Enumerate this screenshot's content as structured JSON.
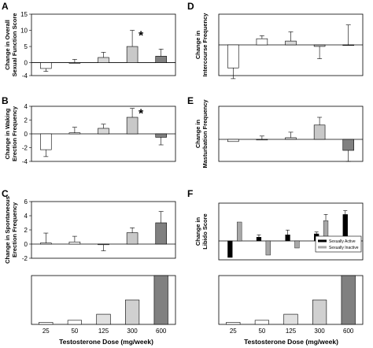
{
  "chart_data": [
    {
      "id": "A",
      "panel_label": "A",
      "type": "bar",
      "ylabel": "Change in Overall Sexual Function Score",
      "ylim": [
        -4,
        15
      ],
      "yticks": [
        -4,
        0,
        5,
        10,
        15
      ],
      "yticklabels": [
        "-4",
        "0",
        "5",
        "10",
        "15"
      ],
      "categories": [
        "25",
        "50",
        "125",
        "300",
        "600"
      ],
      "values": [
        -1.8,
        0.0,
        1.6,
        5.0,
        2.0
      ],
      "errors": [
        0.9,
        1.0,
        1.6,
        5.0,
        2.2
      ],
      "fills": [
        "#ffffff",
        "#ffffff",
        "#d8d8d8",
        "#c8c8c8",
        "#808080"
      ],
      "annotations": [
        {
          "category": "300",
          "text": "*"
        }
      ]
    },
    {
      "id": "B",
      "panel_label": "B",
      "type": "bar",
      "ylabel": "Change in Waking Erection Frequency",
      "ylim": [
        -4,
        4
      ],
      "yticks": [
        -4,
        -2,
        0,
        2,
        4
      ],
      "yticklabels": [
        "-4",
        "-2",
        "0",
        "2",
        "4"
      ],
      "categories": [
        "25",
        "50",
        "125",
        "300",
        "600"
      ],
      "values": [
        -2.3,
        0.15,
        0.8,
        2.4,
        -0.5
      ],
      "errors": [
        1.0,
        0.8,
        0.6,
        1.3,
        1.1
      ],
      "fills": [
        "#ffffff",
        "#ffffff",
        "#d8d8d8",
        "#c8c8c8",
        "#808080"
      ],
      "annotations": [
        {
          "category": "300",
          "text": "*"
        }
      ]
    },
    {
      "id": "C",
      "panel_label": "C",
      "type": "bar",
      "ylabel": "Change in Spontaneous Erection Frequency",
      "ylim": [
        -2,
        6
      ],
      "yticks": [
        -2,
        0,
        2,
        4,
        6
      ],
      "yticklabels": [
        "-2",
        "0",
        "2",
        "4",
        "6"
      ],
      "categories": [
        "25",
        "50",
        "125",
        "300",
        "600"
      ],
      "values": [
        0.15,
        0.3,
        -0.05,
        1.6,
        3.0
      ],
      "errors": [
        1.4,
        0.8,
        0.9,
        0.7,
        1.6
      ],
      "fills": [
        "#ffffff",
        "#ffffff",
        "#d8d8d8",
        "#c8c8c8",
        "#808080"
      ],
      "annotations": []
    },
    {
      "id": "D",
      "panel_label": "D",
      "type": "bar",
      "ylabel": "Change in Intercourse Frequency",
      "ylim": [
        -2,
        2
      ],
      "yticks": [],
      "yticklabels": [],
      "categories": [
        "25",
        "50",
        "125",
        "300",
        "600"
      ],
      "values": [
        -1.5,
        0.4,
        0.25,
        -0.1,
        0.0
      ],
      "errors": [
        0.7,
        0.2,
        0.6,
        0.8,
        1.3
      ],
      "fills": [
        "#ffffff",
        "#ffffff",
        "#d8d8d8",
        "#c8c8c8",
        "#808080"
      ],
      "annotations": []
    },
    {
      "id": "E",
      "panel_label": "E",
      "type": "bar",
      "ylabel": "Change in Masturbation Frequency",
      "ylim": [
        -2,
        3
      ],
      "yticks": [],
      "yticklabels": [],
      "categories": [
        "25",
        "50",
        "125",
        "300",
        "600"
      ],
      "values": [
        -0.2,
        0.0,
        0.15,
        1.3,
        -1.0
      ],
      "errors": [
        0.0,
        0.3,
        0.5,
        0.7,
        1.0
      ],
      "fills": [
        "#ffffff",
        "#ffffff",
        "#d8d8d8",
        "#c8c8c8",
        "#808080"
      ],
      "annotations": []
    },
    {
      "id": "F",
      "panel_label": "F",
      "type": "bar",
      "ylabel": "Change in Libido Score",
      "ylim": [
        -4,
        8
      ],
      "yticks": [],
      "yticklabels": [],
      "categories": [
        "25",
        "50",
        "125",
        "300",
        "600"
      ],
      "series": [
        {
          "name": "Sexually Active",
          "color": "#000000",
          "values": [
            -3.5,
            0.8,
            1.3,
            1.5,
            5.6
          ],
          "errors": [
            0.0,
            0.5,
            1.0,
            0.4,
            0.8
          ]
        },
        {
          "name": "Sexually Inactive",
          "color": "#a8a8a8",
          "values": [
            4.0,
            -3.0,
            -1.5,
            4.3,
            0.0
          ],
          "errors": [
            0.0,
            0.0,
            0.0,
            1.3,
            0.0
          ]
        }
      ],
      "legend_position": "bottom-right",
      "annotations": []
    },
    {
      "id": "dose-left",
      "type": "bar",
      "xlabel": "Testosterone Dose (mg/week)",
      "categories": [
        "25",
        "50",
        "125",
        "300",
        "600"
      ],
      "values": [
        25,
        50,
        125,
        300,
        600
      ],
      "ylim": [
        0,
        600
      ],
      "fills": [
        "#ffffff",
        "#ffffff",
        "#e0e0e0",
        "#d0d0d0",
        "#808080"
      ]
    },
    {
      "id": "dose-right",
      "type": "bar",
      "xlabel": "Testosterone Dose (mg/week)",
      "categories": [
        "25",
        "50",
        "125",
        "300",
        "600"
      ],
      "values": [
        25,
        50,
        125,
        300,
        600
      ],
      "ylim": [
        0,
        600
      ],
      "fills": [
        "#ffffff",
        "#ffffff",
        "#e0e0e0",
        "#d0d0d0",
        "#808080"
      ]
    }
  ]
}
